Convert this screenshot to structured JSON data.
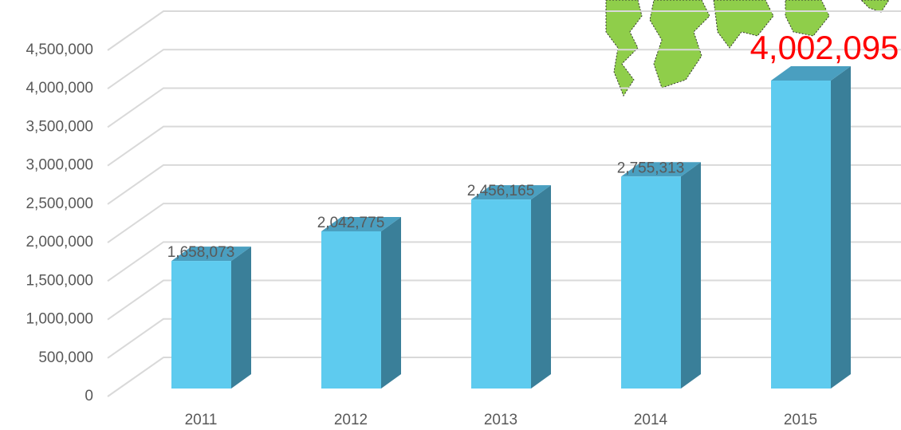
{
  "chart_data": {
    "type": "bar3d",
    "categories": [
      "2011",
      "2012",
      "2013",
      "2014",
      "2015"
    ],
    "values": [
      1658073,
      2042775,
      2456165,
      2755313,
      4002095
    ],
    "value_labels": [
      "1,658,073",
      "2,042,775",
      "2,456,165",
      "2,755,313",
      "4,002,095"
    ],
    "highlight_color": "#ff0000",
    "color": "#5ecbef",
    "ylim": [
      0,
      4500000
    ],
    "yticks": [
      0,
      {
        "value": 500000,
        "label": "500,000"
      },
      {
        "value": 1000000,
        "label": "1,000,000"
      },
      {
        "value": 1500000,
        "label": "1,500,000"
      },
      {
        "value": 2000000,
        "label": "2,000,000"
      },
      {
        "value": 2500000,
        "label": "2,500,000"
      },
      {
        "value": 3000000,
        "label": "3,000,000"
      },
      {
        "value": 3500000,
        "label": "3,500,000"
      },
      {
        "value": 4000000,
        "label": "4,000,000"
      },
      {
        "value": 4500000,
        "label": "4,500,000"
      }
    ],
    "grid": true
  }
}
